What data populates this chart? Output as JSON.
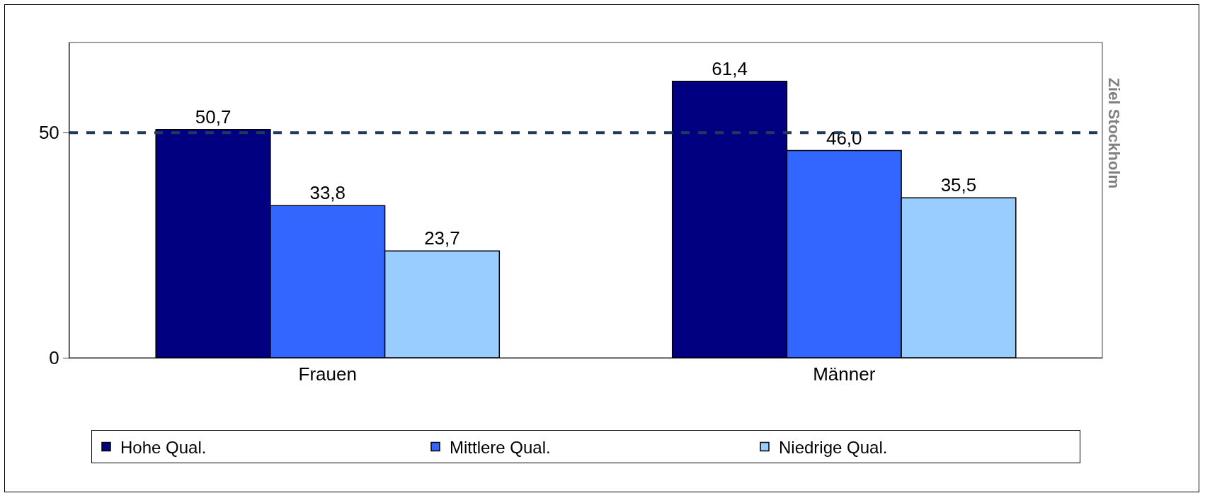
{
  "chart_data": {
    "type": "bar",
    "categories": [
      "Frauen",
      "Männer"
    ],
    "series": [
      {
        "name": "Hohe Qual.",
        "color": "#000080",
        "values": [
          50.7,
          61.4
        ],
        "value_labels": [
          "50,7",
          "61,4"
        ]
      },
      {
        "name": "Mittlere Qual.",
        "color": "#3366ff",
        "values": [
          33.8,
          46.0
        ],
        "value_labels": [
          "33,8",
          "46,0"
        ]
      },
      {
        "name": "Niedrige Qual.",
        "color": "#99ccff",
        "values": [
          23.7,
          35.5
        ],
        "value_labels": [
          "23,7",
          "35,5"
        ]
      }
    ],
    "ylim": [
      0,
      70
    ],
    "yticks": [
      0,
      50
    ],
    "grid": false,
    "legend": "bottom",
    "ref_lines": [
      {
        "axis": "y",
        "value": 50,
        "label": "Ziel Stockholm",
        "color": "#1f3b5c",
        "line_style": "dashed"
      }
    ]
  }
}
